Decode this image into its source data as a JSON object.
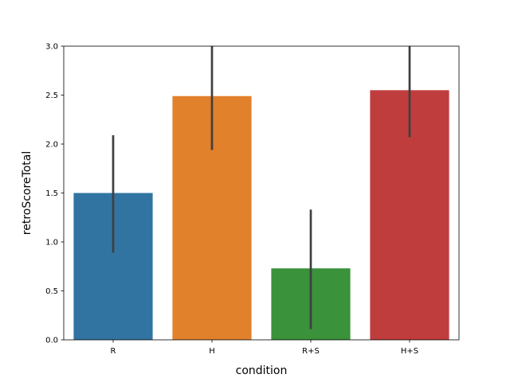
{
  "chart_data": {
    "type": "bar",
    "xlabel": "condition",
    "ylabel": "retroScoreTotal",
    "categories": [
      "R",
      "H",
      "R+S",
      "H+S"
    ],
    "values": [
      1.5,
      2.49,
      0.73,
      2.55
    ],
    "error_low": [
      0.89,
      1.94,
      0.11,
      2.07
    ],
    "error_high": [
      2.09,
      3.0,
      1.33,
      3.0
    ],
    "colors": [
      "#3274a1",
      "#e1812c",
      "#3a923a",
      "#c03d3e"
    ],
    "ylim": [
      0,
      3.0
    ],
    "yticks": [
      "0.0",
      "0.5",
      "1.0",
      "1.5",
      "2.0",
      "2.5",
      "3.0"
    ],
    "grid": false,
    "legend": "none"
  }
}
